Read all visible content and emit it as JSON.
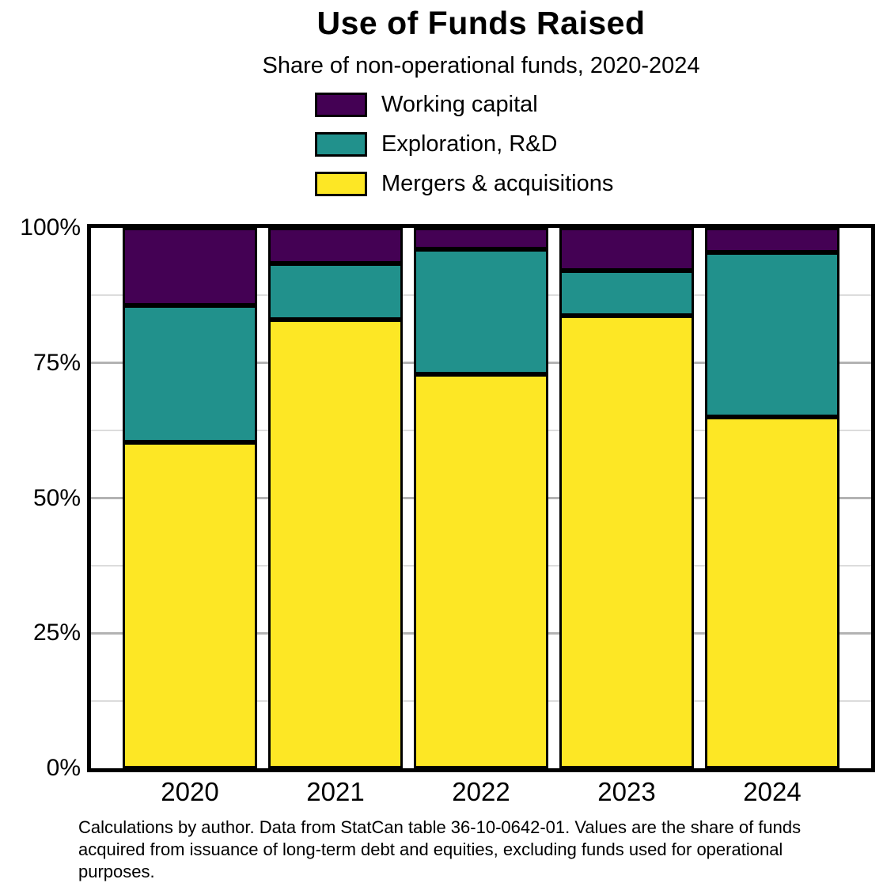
{
  "chart_data": {
    "type": "bar",
    "stacked": true,
    "orientation": "vertical",
    "title": "Use of Funds Raised",
    "subtitle": "Share of non-operational funds, 2020-2024",
    "categories": [
      "2020",
      "2021",
      "2022",
      "2023",
      "2024"
    ],
    "series": [
      {
        "name": "Working capital",
        "color": "#440154",
        "values": [
          14.4,
          6.6,
          4.0,
          7.9,
          4.5
        ]
      },
      {
        "name": "Exploration, R&D",
        "color": "#21918c",
        "values": [
          25.3,
          10.4,
          23.1,
          8.4,
          30.5
        ]
      },
      {
        "name": "Mergers & acquisitions",
        "color": "#fde725",
        "values": [
          60.3,
          83.0,
          72.9,
          83.7,
          65.0
        ]
      }
    ],
    "value_unit": "%",
    "ylim": [
      0,
      100
    ],
    "yticks": [
      "0%",
      "25%",
      "50%",
      "75%",
      "100%"
    ],
    "grid": {
      "major_interval_pct": 25,
      "minor_interval_pct": 12.5,
      "gridlines_on": true
    },
    "legend_position": "top-center-above-plot",
    "colors": {
      "bar_outline": "#000000",
      "major_grid": "#b3b3b3",
      "minor_grid": "#dcdcdc",
      "plot_border": "#000000"
    }
  },
  "caption": "Calculations by author. Data from StatCan table 36-10-0642-01. Values are the share of funds acquired from issuance of long-term debt and equities, excluding funds used for operational purposes."
}
